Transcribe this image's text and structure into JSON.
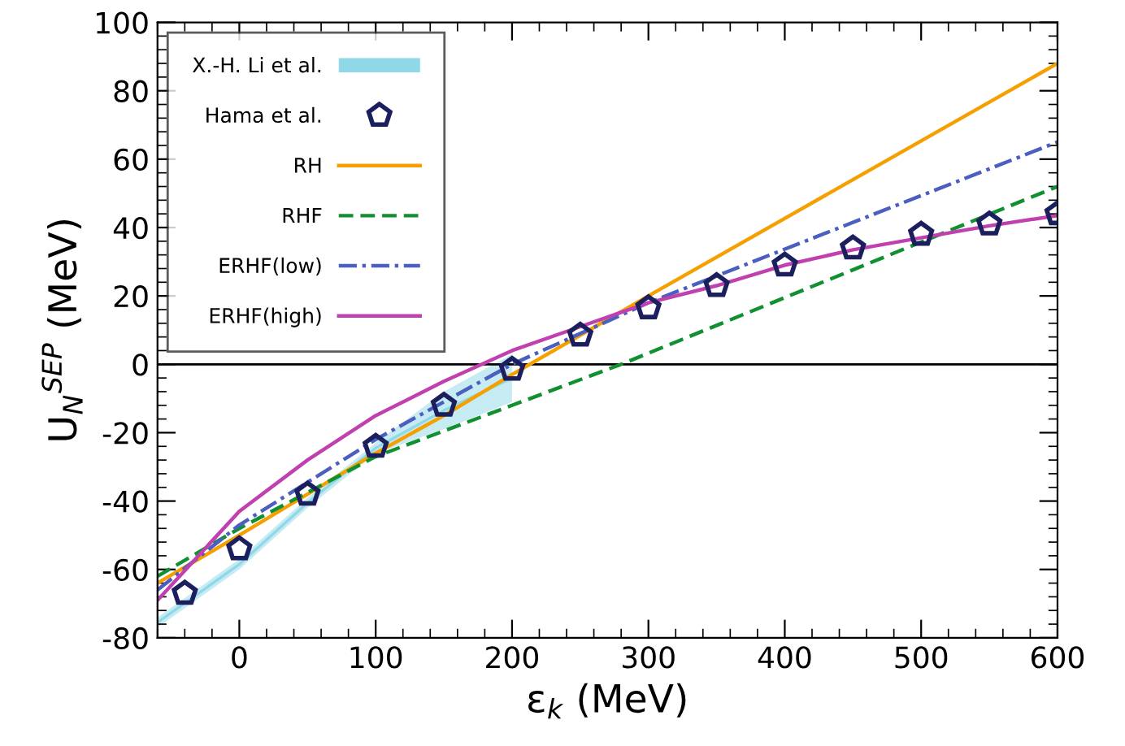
{
  "chart_data": {
    "type": "line",
    "xlabel": "ε$_{k}$ (MeV)",
    "ylabel": "U$_{N}$$^{SEP}$ (MeV)",
    "xlim": [
      -60,
      600
    ],
    "ylim": [
      -80,
      100
    ],
    "xticks": [
      0,
      100,
      200,
      300,
      400,
      500,
      600
    ],
    "yticks": [
      -80,
      -60,
      -40,
      -20,
      0,
      20,
      40,
      60,
      80,
      100
    ],
    "grid": false,
    "legend": "top left",
    "ref_lines": [
      {
        "axis": "y",
        "value": 0,
        "color": "#000000",
        "line_style": "solid"
      }
    ],
    "series": [
      {
        "name": "X.-H. Li et al.",
        "type": "line",
        "color": "#8fd8e8",
        "x": [
          -60,
          0,
          50,
          100,
          150,
          200
        ],
        "values": [
          -75.5,
          -58.5,
          -40.5,
          -24.5,
          -13.5,
          -4
        ],
        "lower": [
          -77,
          -60,
          -42,
          -26,
          -19,
          -11
        ],
        "upper": [
          -74,
          -57,
          -39,
          -23,
          -8,
          3
        ]
      },
      {
        "name": "Hama et al.",
        "type": "scatter",
        "color": "#1c1f5e",
        "x": [
          -40,
          0,
          50,
          100,
          150,
          200,
          250,
          300,
          350,
          400,
          450,
          500,
          550,
          600
        ],
        "values": [
          -67,
          -54,
          -38,
          -24,
          -12,
          -1.5,
          8.5,
          16.5,
          23,
          29,
          34,
          38,
          41,
          44
        ]
      },
      {
        "name": "RH",
        "line_style": "solid",
        "color": "#f5a000",
        "x": [
          -60,
          0,
          50,
          100,
          150,
          200,
          300,
          600
        ],
        "values": [
          -64,
          -50,
          -38,
          -26,
          -15,
          -3,
          20,
          88
        ]
      },
      {
        "name": "RHF",
        "line_style": "dashed",
        "color": "#109030",
        "x": [
          -60,
          0,
          100,
          200,
          280,
          600
        ],
        "values": [
          -62,
          -48,
          -27,
          -12,
          0,
          52
        ]
      },
      {
        "name": "ERHF(low)",
        "line_style": "dashdot",
        "color": "#4a5fc0",
        "x": [
          -60,
          0,
          100,
          200,
          300,
          600
        ],
        "values": [
          -66,
          -47,
          -22,
          0,
          18,
          65
        ]
      },
      {
        "name": "ERHF(high)",
        "line_style": "solid",
        "color": "#c040b0",
        "x": [
          -60,
          0,
          50,
          100,
          150,
          200,
          250,
          300,
          350,
          400,
          450,
          500,
          550,
          600
        ],
        "values": [
          -69,
          -43,
          -28,
          -15,
          -5,
          4,
          11,
          18,
          23,
          29,
          33.5,
          37,
          40.5,
          43.5
        ]
      }
    ]
  }
}
